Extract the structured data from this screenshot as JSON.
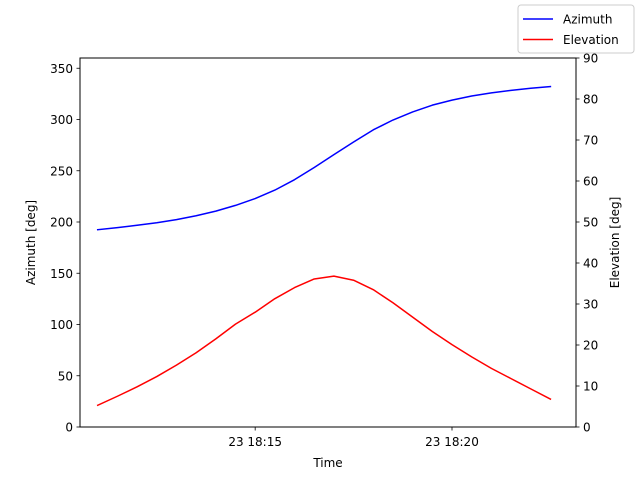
{
  "chart_data": {
    "type": "line",
    "xlabel": "Time",
    "x_tick_labels": [
      "23 18:15",
      "23 18:20"
    ],
    "x_ticks_minutes": [
      15,
      20
    ],
    "xlim_minutes": [
      10.55,
      23.15
    ],
    "left_axis": {
      "label": "Azimuth [deg]",
      "ylim": [
        0,
        360
      ],
      "ticks": [
        0,
        50,
        100,
        150,
        200,
        250,
        300,
        350
      ]
    },
    "right_axis": {
      "label": "Elevation [deg]",
      "ylim": [
        0,
        90
      ],
      "ticks": [
        0,
        10,
        20,
        30,
        40,
        50,
        60,
        70,
        80,
        90
      ]
    },
    "legend_position": "top-right",
    "x_minutes": [
      11.0,
      11.5,
      12.0,
      12.5,
      13.0,
      13.5,
      14.0,
      14.5,
      15.0,
      15.5,
      16.0,
      16.5,
      17.0,
      17.5,
      18.0,
      18.5,
      19.0,
      19.5,
      20.0,
      20.5,
      21.0,
      21.5,
      22.0,
      22.5
    ],
    "series": [
      {
        "name": "Azimuth",
        "axis": "left",
        "color": "#0000ff",
        "values": [
          192.5,
          194.5,
          196.8,
          199.3,
          202.3,
          206.1,
          210.6,
          216.2,
          222.9,
          231.1,
          241.3,
          253.2,
          265.7,
          278.1,
          289.9,
          299.5,
          307.4,
          314.0,
          318.9,
          322.9,
          326.0,
          328.4,
          330.5,
          332.1
        ]
      },
      {
        "name": "Elevation",
        "axis": "right",
        "color": "#ff0000",
        "values": [
          5.3,
          7.5,
          9.8,
          12.3,
          15.1,
          18.1,
          21.5,
          25.1,
          28.0,
          31.3,
          34.0,
          36.1,
          36.8,
          35.8,
          33.5,
          30.3,
          26.8,
          23.3,
          20.1,
          17.1,
          14.3,
          11.8,
          9.3,
          6.8
        ]
      }
    ]
  }
}
